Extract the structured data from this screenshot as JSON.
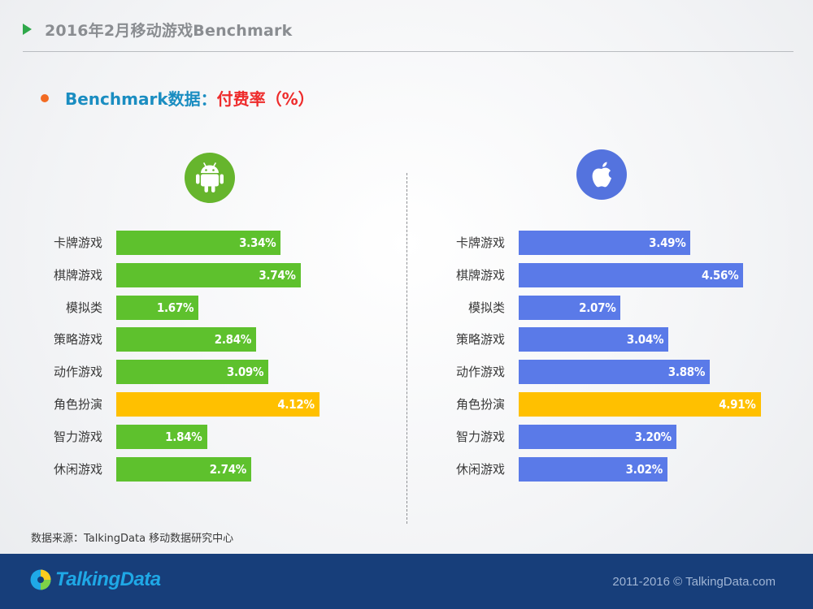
{
  "header": {
    "title": "2016年2月移动游戏Benchmark"
  },
  "subtitle": {
    "main": "Benchmark数据：",
    "metric": "付费率（%）"
  },
  "icons": {
    "left": "android-icon",
    "right": "apple-icon"
  },
  "colors": {
    "android": "#5ec12d",
    "ios": "#5a7ae8",
    "highlight": "#ffc000"
  },
  "chart_data": [
    {
      "type": "bar",
      "orientation": "horizontal",
      "platform_icon": "android",
      "categories": [
        "卡牌游戏",
        "棋牌游戏",
        "模拟类",
        "策略游戏",
        "动作游戏",
        "角色扮演",
        "智力游戏",
        "休闲游戏"
      ],
      "values": [
        3.34,
        3.74,
        1.67,
        2.84,
        3.09,
        4.12,
        1.84,
        2.74
      ],
      "labels": [
        "3.34%",
        "3.74%",
        "1.67%",
        "2.84%",
        "3.09%",
        "4.12%",
        "1.84%",
        "2.74%"
      ],
      "highlight_index": 5,
      "bar_color": "#5ec12d",
      "highlight_color": "#ffc000",
      "xlim": [
        0,
        5
      ]
    },
    {
      "type": "bar",
      "orientation": "horizontal",
      "platform_icon": "apple",
      "categories": [
        "卡牌游戏",
        "棋牌游戏",
        "模拟类",
        "策略游戏",
        "动作游戏",
        "角色扮演",
        "智力游戏",
        "休闲游戏"
      ],
      "values": [
        3.49,
        4.56,
        2.07,
        3.04,
        3.88,
        4.91,
        3.2,
        3.02
      ],
      "labels": [
        "3.49%",
        "4.56%",
        "2.07%",
        "3.04%",
        "3.88%",
        "4.91%",
        "3.20%",
        "3.02%"
      ],
      "highlight_index": 5,
      "bar_color": "#5a7ae8",
      "highlight_color": "#ffc000",
      "xlim": [
        0,
        5
      ]
    }
  ],
  "source": "数据来源：TalkingData 移动数据研究中心",
  "footer": {
    "logo_text": "TalkingData",
    "copyright": "2011-2016 © TalkingData.com"
  }
}
